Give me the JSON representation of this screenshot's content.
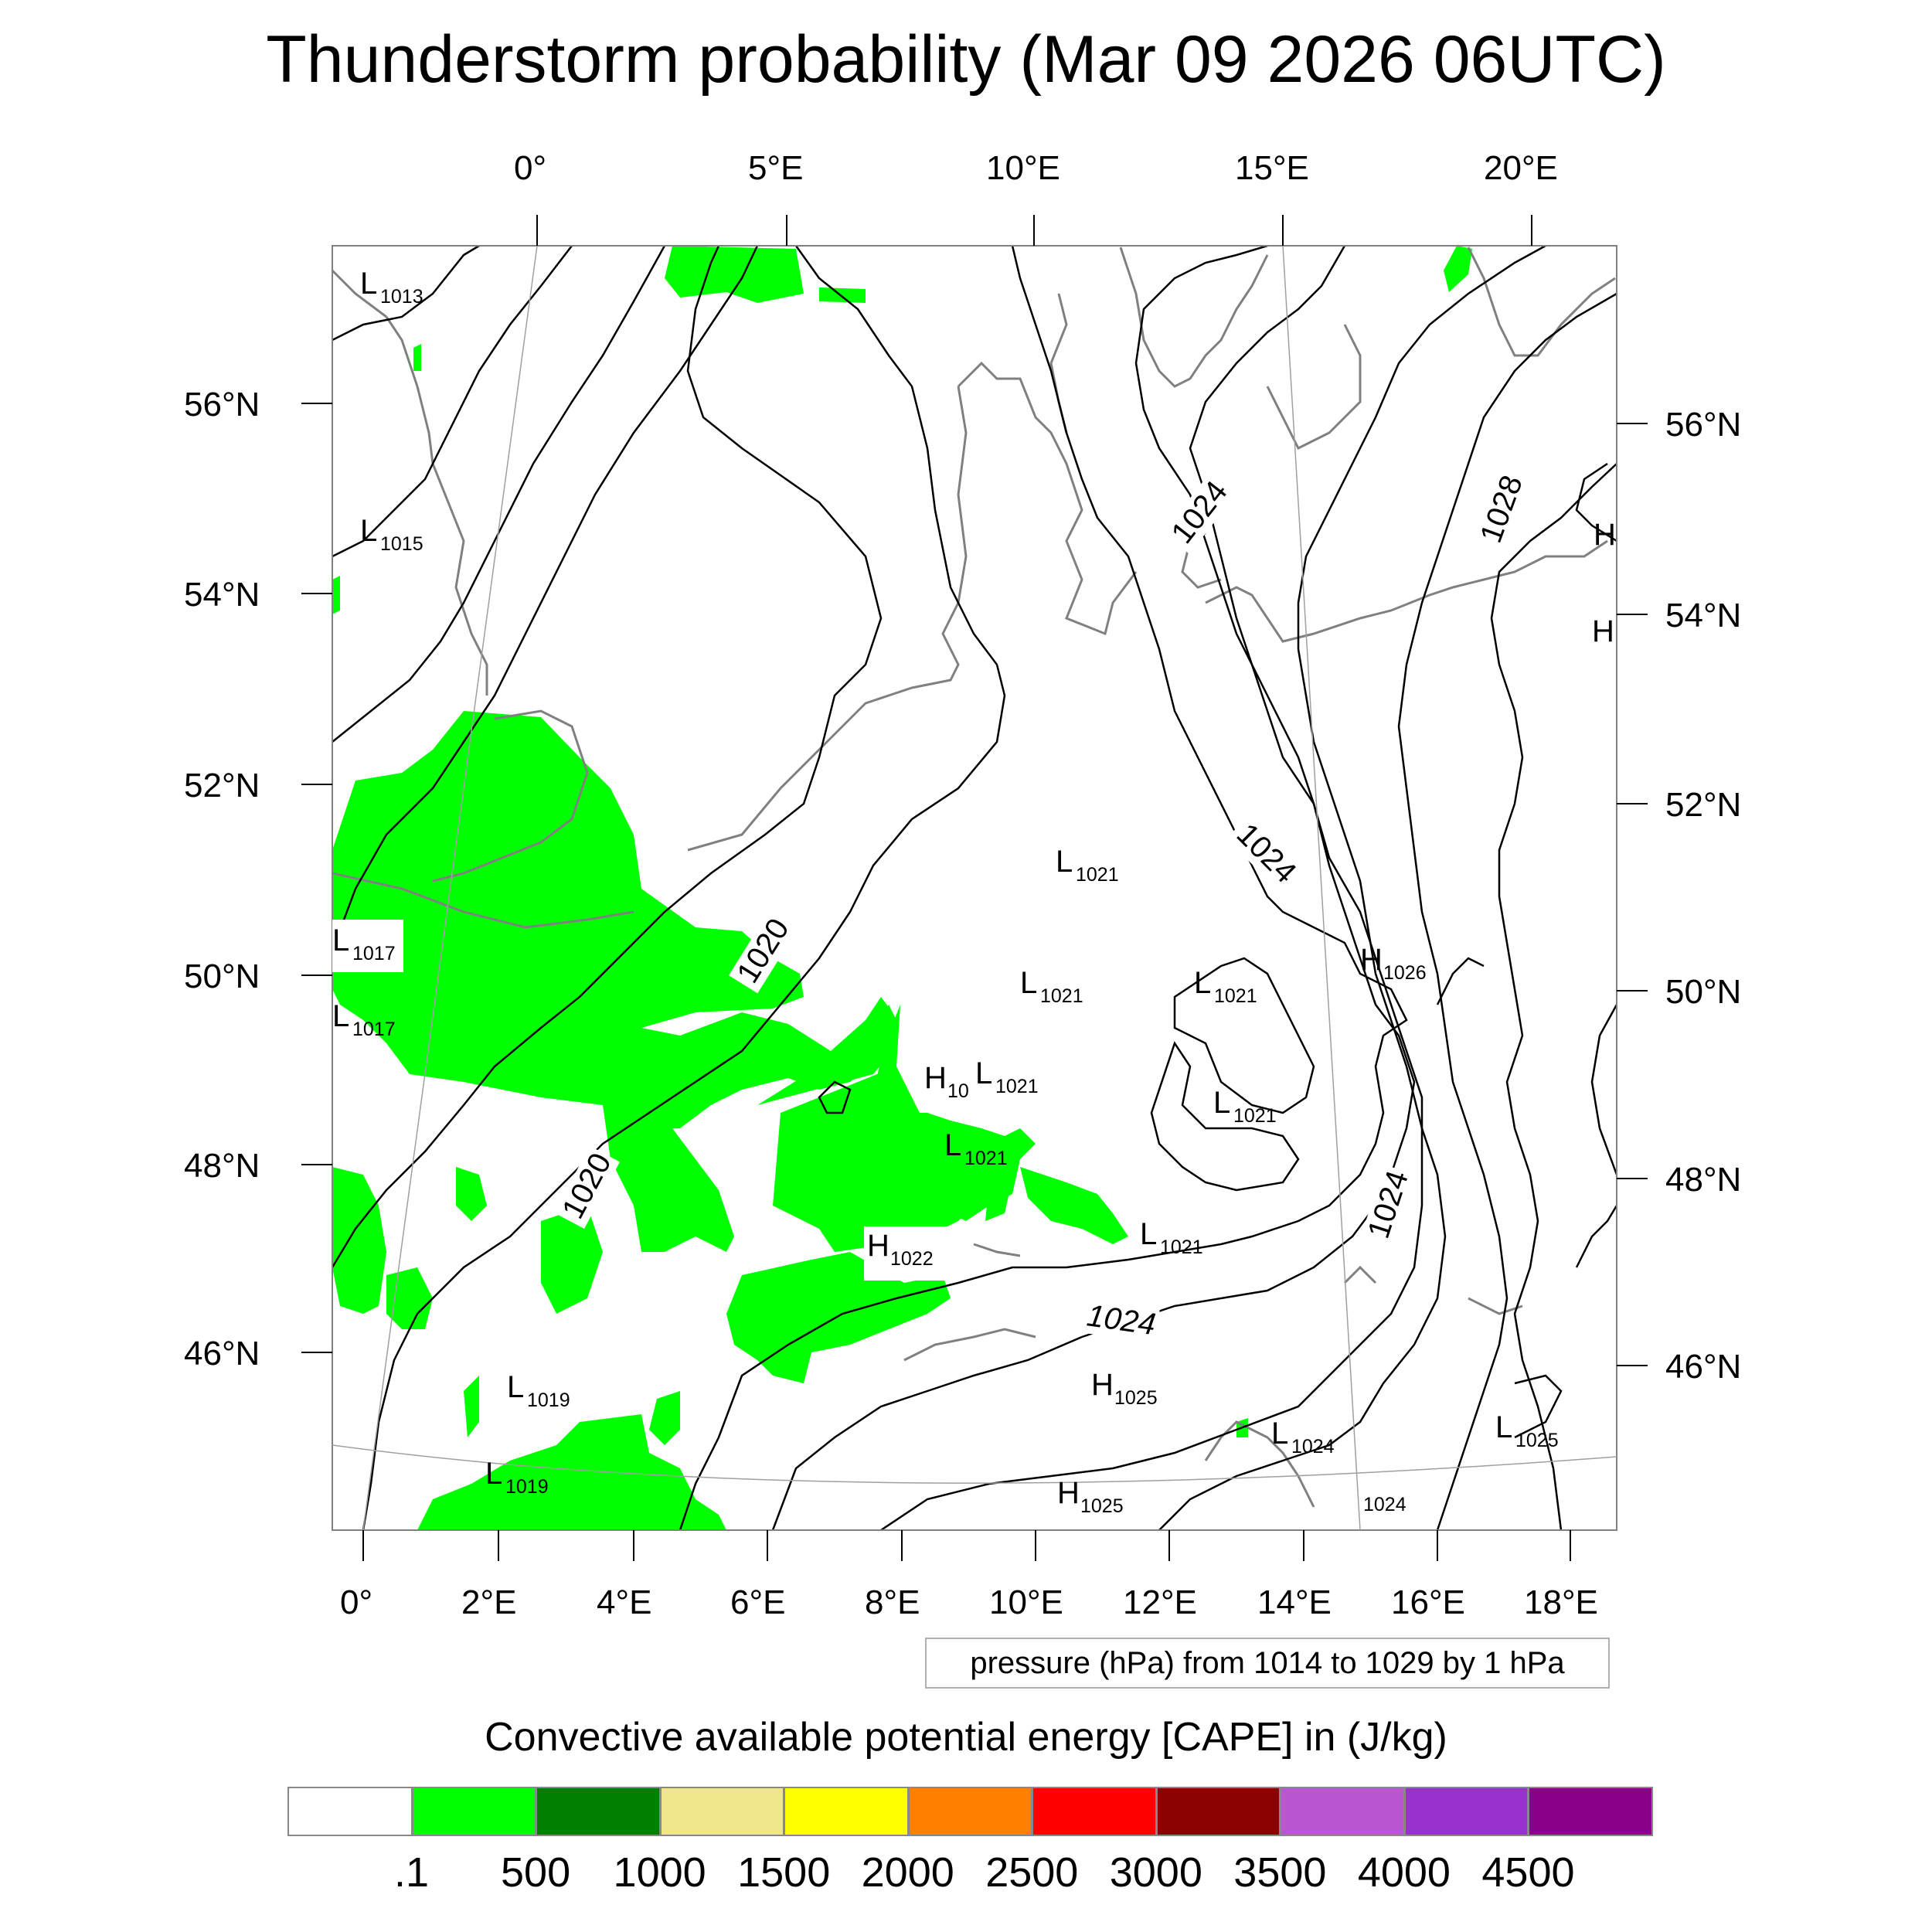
{
  "title": "Thunderstorm probability (Mar 09 2026 06UTC)",
  "axes": {
    "top_lon": [
      "0°",
      "5°E",
      "10°E",
      "15°E",
      "20°E"
    ],
    "bottom_lon": [
      "0°",
      "2°E",
      "4°E",
      "6°E",
      "8°E",
      "10°E",
      "12°E",
      "14°E",
      "16°E",
      "18°E"
    ],
    "left_lat": [
      "56°N",
      "54°N",
      "52°N",
      "50°N",
      "48°N",
      "46°N"
    ],
    "right_lat": [
      "56°N",
      "54°N",
      "52°N",
      "50°N",
      "48°N",
      "46°N"
    ]
  },
  "contour_info": "pressure (hPa) from 1014 to 1029 by 1 hPa",
  "contour_labels": [
    "1020",
    "1020",
    "1024",
    "1024",
    "1024",
    "1024",
    "1028"
  ],
  "pressure_centers": [
    {
      "type": "L",
      "value": "1013"
    },
    {
      "type": "L",
      "value": "1015"
    },
    {
      "type": "L",
      "value": "1017"
    },
    {
      "type": "L",
      "value": "1017"
    },
    {
      "type": "L",
      "value": "1019"
    },
    {
      "type": "L",
      "value": "1019"
    },
    {
      "type": "L",
      "value": "1021"
    },
    {
      "type": "L",
      "value": "1021"
    },
    {
      "type": "L",
      "value": "1021"
    },
    {
      "type": "H",
      "value": "10"
    },
    {
      "type": "L",
      "value": "1021"
    },
    {
      "type": "L",
      "value": "1021"
    },
    {
      "type": "L",
      "value": "1021"
    },
    {
      "type": "L",
      "value": "1021"
    },
    {
      "type": "H",
      "value": "1022"
    },
    {
      "type": "H",
      "value": "1026"
    },
    {
      "type": "H",
      "value": "1025"
    },
    {
      "type": "H",
      "value": "1025"
    },
    {
      "type": "L",
      "value": "1024"
    },
    {
      "type": "L",
      "value": "1025"
    },
    {
      "type": "",
      "value": "1024"
    },
    {
      "type": "H",
      "value": ""
    },
    {
      "type": "H",
      "value": ""
    }
  ],
  "colorbar": {
    "title": "Convective available potential energy [CAPE] in (J/kg)",
    "colors": [
      "#ffffff",
      "#00ff00",
      "#007f00",
      "#f0e68c",
      "#ffff00",
      "#ff8000",
      "#ff0000",
      "#8b0000",
      "#ba55d3",
      "#9932cc",
      "#8b008b"
    ],
    "ticks": [
      ".1",
      "500",
      "1000",
      "1500",
      "2000",
      "2500",
      "3000",
      "3500",
      "4000",
      "4500"
    ]
  },
  "colors": {
    "cape_low": "#00ff00",
    "coastline": "#808080",
    "isobar": "#000000"
  }
}
